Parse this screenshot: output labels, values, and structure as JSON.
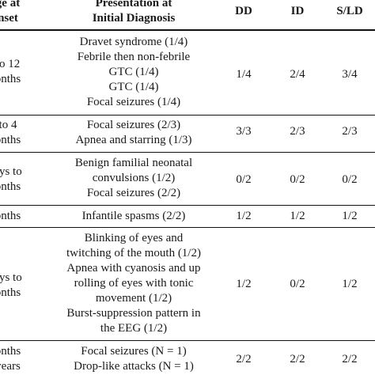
{
  "table": {
    "headers": {
      "age": [
        "ge at",
        "nset"
      ],
      "presentation": [
        "Presentation at",
        "Initial Diagnosis"
      ],
      "dd": "DD",
      "id": "ID",
      "sld": "S/LD"
    },
    "rows": [
      {
        "age": [
          "to 12",
          "onths"
        ],
        "presentation": [
          "Dravet syndrome (1/4)",
          "Febrile then non-febrile",
          "GTC (1/4)",
          "GTC (1/4)",
          "Focal seizures (1/4)"
        ],
        "dd": "1/4",
        "id": "2/4",
        "sld": "3/4"
      },
      {
        "age": [
          "to 4",
          "onths"
        ],
        "presentation": [
          "Focal seizures (2/3)",
          "Apnea and starring (1/3)"
        ],
        "dd": "3/3",
        "id": "2/3",
        "sld": "2/3"
      },
      {
        "age": [
          "ays to",
          "onths"
        ],
        "presentation": [
          "Benign familial neonatal",
          "convulsions (1/2)",
          "Focal seizures (2/2)"
        ],
        "dd": "0/2",
        "id": "0/2",
        "sld": "0/2"
      },
      {
        "age": [
          "onths"
        ],
        "presentation": [
          "Infantile spasms (2/2)"
        ],
        "dd": "1/2",
        "id": "1/2",
        "sld": "1/2"
      },
      {
        "age": [
          "ays to",
          "onths"
        ],
        "presentation": [
          "Blinking of eyes and",
          "twitching of the mouth (1/2)",
          "Apnea with cyanosis and up",
          "rolling of eyes with tonic",
          "movement (1/2)",
          "Burst-suppression pattern in",
          "the EEG (1/2)"
        ],
        "dd": "1/2",
        "id": "0/2",
        "sld": "1/2"
      },
      {
        "age": [
          "onths",
          "years"
        ],
        "presentation": [
          "Focal seizures (N = 1)",
          "Drop-like attacks (N = 1)"
        ],
        "dd": "2/2",
        "id": "2/2",
        "sld": "2/2"
      }
    ]
  }
}
